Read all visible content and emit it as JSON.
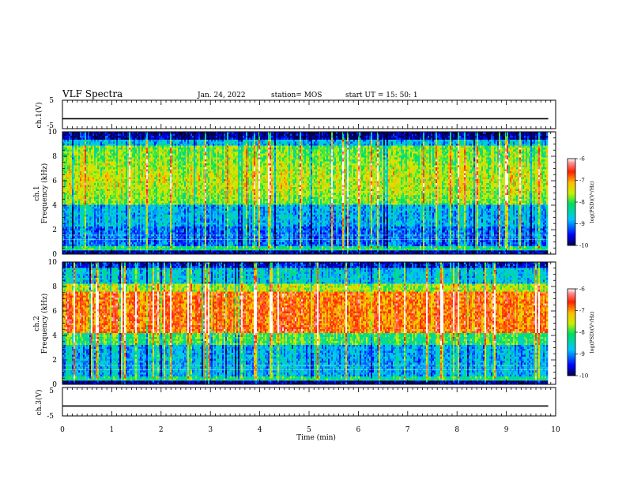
{
  "header": {
    "title": "VLF Spectra",
    "date": "Jan. 24, 2022",
    "station": "station= MOS",
    "start": "start  UT =   15: 50: 1"
  },
  "chart_data": [
    {
      "type": "line",
      "panel": "ch1-voltage",
      "ylabel": "ch.1(V)",
      "ylim": [
        -5,
        5
      ],
      "yticks": [
        "5",
        "-5"
      ],
      "xlim": [
        0,
        10
      ],
      "series_level": -1.5
    },
    {
      "type": "heatmap",
      "panel": "ch1-spectrogram",
      "ylabel": "ch.1 Frequency (kHz)",
      "ylabel_lines": [
        "ch.1",
        "Frequency (kHz)"
      ],
      "ylim": [
        0,
        10
      ],
      "yticks": [
        "0",
        "2",
        "4",
        "6",
        "8",
        "10"
      ],
      "xlim": [
        0,
        10
      ],
      "data_end_min": 9.85,
      "colorbar": {
        "label": "log(PSD)(V²/Hz)",
        "range": [
          -10,
          -6
        ],
        "ticks": [
          "-6",
          "-7",
          "-8",
          "-9",
          "-10"
        ]
      }
    },
    {
      "type": "heatmap",
      "panel": "ch2-spectrogram",
      "ylabel": "ch.2 Frequency (kHz)",
      "ylabel_lines": [
        "ch.2",
        "Frequency (kHz)"
      ],
      "ylim": [
        0,
        10
      ],
      "yticks": [
        "0",
        "2",
        "4",
        "6",
        "8",
        "10"
      ],
      "xlim": [
        0,
        10
      ],
      "data_end_min": 9.85,
      "colorbar": {
        "label": "log(PSD)(V²/Hz)",
        "range": [
          -10,
          -6
        ],
        "ticks": [
          "-6",
          "-7",
          "-8",
          "-9",
          "-10"
        ]
      }
    },
    {
      "type": "line",
      "panel": "ch3-voltage",
      "ylabel": "ch.3(V)",
      "ylim": [
        -5,
        5
      ],
      "yticks": [
        "5",
        "-5"
      ],
      "xlim": [
        0,
        10
      ],
      "series_level": -1.5
    }
  ],
  "xaxis": {
    "label": "Time (min)",
    "ticks": [
      "0",
      "1",
      "2",
      "3",
      "4",
      "5",
      "6",
      "7",
      "8",
      "9",
      "10"
    ]
  }
}
